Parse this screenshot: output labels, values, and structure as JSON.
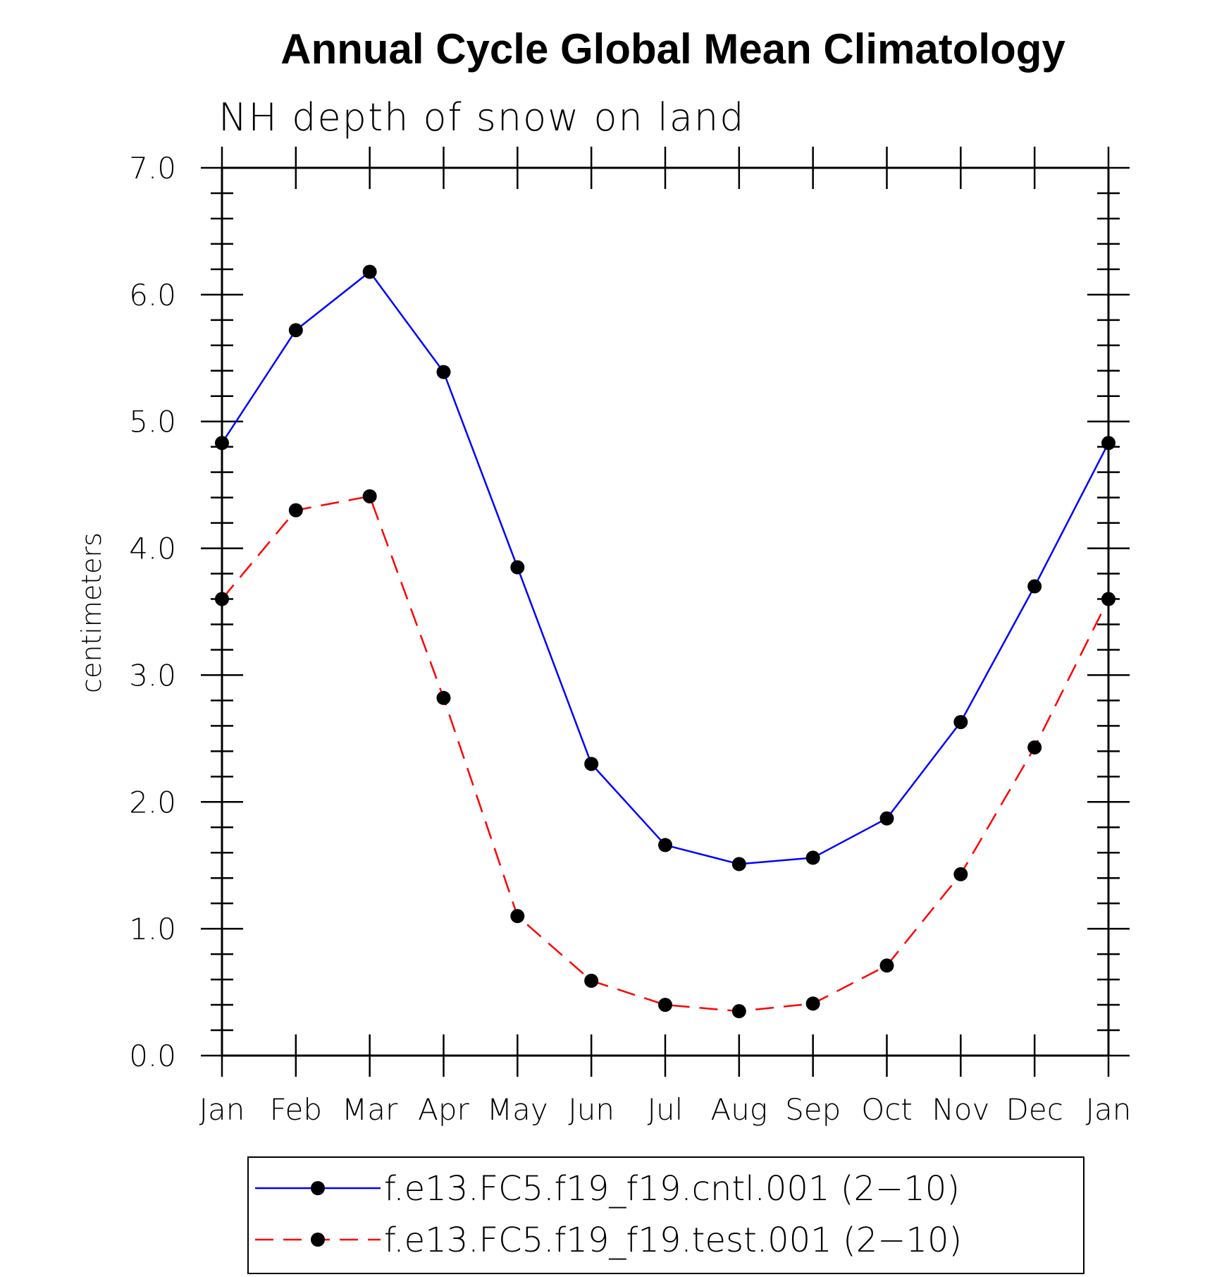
{
  "chart_data": {
    "type": "line",
    "title": "Annual Cycle Global Mean Climatology",
    "subtitle": "NH depth of snow on land",
    "xlabel": "",
    "ylabel": "centimeters",
    "categories": [
      "Jan",
      "Feb",
      "Mar",
      "Apr",
      "May",
      "Jun",
      "Jul",
      "Aug",
      "Sep",
      "Oct",
      "Nov",
      "Dec",
      "Jan"
    ],
    "ylim": [
      0,
      7
    ],
    "yticks": [
      "0.0",
      "1.0",
      "2.0",
      "3.0",
      "4.0",
      "5.0",
      "6.0",
      "7.0"
    ],
    "grid": false,
    "legend_position": "bottom",
    "series": [
      {
        "name": "f.e13.FC5.f19_f19.cntl.001 (2−10)",
        "color": "#0000ff",
        "line_style": "solid",
        "marker": "filled-circle",
        "values": [
          4.83,
          5.72,
          6.18,
          5.39,
          3.85,
          2.3,
          1.66,
          1.51,
          1.56,
          1.87,
          2.63,
          3.7,
          4.83
        ]
      },
      {
        "name": "f.e13.FC5.f19_f19.test.001 (2−10)",
        "color": "#ff0000",
        "line_style": "dashed",
        "marker": "filled-circle",
        "values": [
          3.6,
          4.3,
          4.41,
          2.82,
          1.1,
          0.59,
          0.4,
          0.35,
          0.41,
          0.71,
          1.43,
          2.43,
          3.6
        ]
      }
    ]
  }
}
